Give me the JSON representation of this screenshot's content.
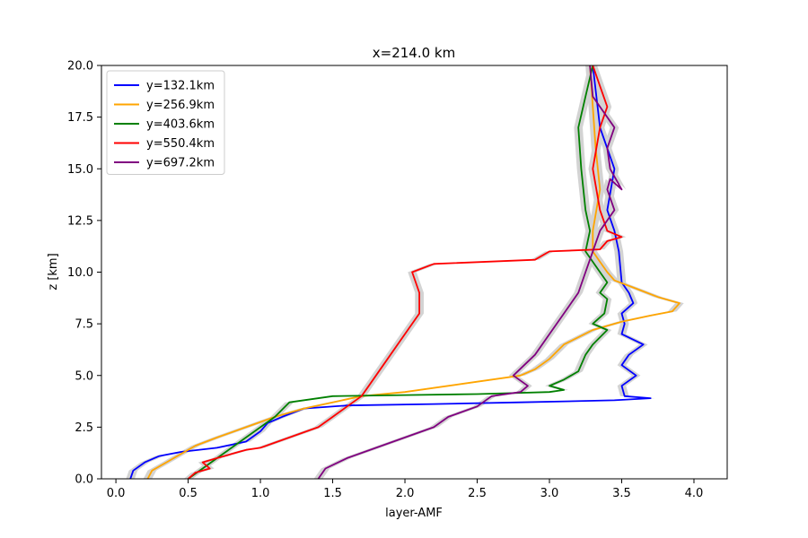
{
  "chart_data": {
    "type": "line",
    "title": "x=214.0 km",
    "xlabel": "layer-AMF",
    "ylabel": "z [km]",
    "xlim": [
      -0.1,
      4.23
    ],
    "ylim": [
      0,
      20
    ],
    "xticks": [
      0.0,
      0.5,
      1.0,
      1.5,
      2.0,
      2.5,
      3.0,
      3.5,
      4.0
    ],
    "xtick_labels": [
      "0.0",
      "0.5",
      "1.0",
      "1.5",
      "2.0",
      "2.5",
      "3.0",
      "3.5",
      "4.0"
    ],
    "yticks": [
      0.0,
      2.5,
      5.0,
      7.5,
      10.0,
      12.5,
      15.0,
      17.5,
      20.0
    ],
    "ytick_labels": [
      "0.0",
      "2.5",
      "5.0",
      "7.5",
      "10.0",
      "12.5",
      "15.0",
      "17.5",
      "20.0"
    ],
    "grid": false,
    "legend_position": "top-left",
    "band_color": "#d3d3d3",
    "series": [
      {
        "name": "y=132.1km",
        "color": "#0000ff",
        "x": [
          0.1,
          0.12,
          0.2,
          0.3,
          0.45,
          0.7,
          0.9,
          1.0,
          1.05,
          1.15,
          1.3,
          1.6,
          2.2,
          2.8,
          3.45,
          3.7,
          3.52,
          3.5,
          3.6,
          3.5,
          3.55,
          3.65,
          3.5,
          3.52,
          3.5,
          3.58,
          3.55,
          3.5,
          3.48,
          3.45,
          3.4,
          3.45,
          3.35,
          3.3
        ],
        "y": [
          0.0,
          0.4,
          0.8,
          1.1,
          1.3,
          1.5,
          1.8,
          2.3,
          2.7,
          3.0,
          3.4,
          3.55,
          3.62,
          3.7,
          3.8,
          3.9,
          4.0,
          4.5,
          5.0,
          5.5,
          6.0,
          6.5,
          7.0,
          7.5,
          8.0,
          8.5,
          9.0,
          9.5,
          11.0,
          12.0,
          13.0,
          15.0,
          17.0,
          20.0
        ]
      },
      {
        "name": "y=256.9km",
        "color": "#ffa500",
        "x": [
          0.22,
          0.25,
          0.35,
          0.45,
          0.55,
          0.7,
          0.9,
          1.1,
          1.3,
          1.5,
          1.7,
          2.0,
          2.3,
          2.5,
          2.8,
          2.9,
          3.0,
          3.1,
          3.3,
          3.5,
          3.7,
          3.85,
          3.9,
          3.75,
          3.6,
          3.45,
          3.4,
          3.35,
          3.3,
          3.3,
          3.35,
          3.32,
          3.3,
          3.28
        ],
        "y": [
          0.0,
          0.4,
          0.8,
          1.2,
          1.6,
          2.0,
          2.5,
          3.0,
          3.4,
          3.7,
          4.0,
          4.2,
          4.5,
          4.7,
          5.0,
          5.3,
          5.8,
          6.5,
          7.2,
          7.6,
          7.9,
          8.1,
          8.5,
          8.8,
          9.2,
          9.6,
          10.0,
          10.5,
          11.0,
          12.0,
          14.0,
          16.0,
          18.0,
          20.0
        ]
      },
      {
        "name": "y=403.6km",
        "color": "#008000",
        "x": [
          0.5,
          0.6,
          0.7,
          0.8,
          0.9,
          1.0,
          1.1,
          1.2,
          1.5,
          2.0,
          2.5,
          3.0,
          3.1,
          3.0,
          3.1,
          3.2,
          3.25,
          3.3,
          3.4,
          3.3,
          3.38,
          3.4,
          3.35,
          3.4,
          3.35,
          3.3,
          3.25,
          3.28,
          3.25,
          3.22,
          3.2,
          3.25,
          3.3
        ],
        "y": [
          0.0,
          0.5,
          1.0,
          1.5,
          2.0,
          2.5,
          3.0,
          3.7,
          4.0,
          4.05,
          4.1,
          4.2,
          4.3,
          4.5,
          4.8,
          5.2,
          6.0,
          6.5,
          7.2,
          7.5,
          8.0,
          8.7,
          9.0,
          9.5,
          10.0,
          10.5,
          11.0,
          12.0,
          13.0,
          15.0,
          17.0,
          18.5,
          20.0
        ]
      },
      {
        "name": "y=550.4km",
        "color": "#ff0000",
        "x": [
          0.5,
          0.55,
          0.65,
          0.6,
          0.7,
          0.8,
          0.9,
          1.0,
          1.2,
          1.4,
          1.5,
          1.6,
          1.7,
          1.75,
          1.8,
          1.9,
          2.0,
          2.1,
          2.1,
          2.05,
          2.2,
          2.9,
          3.0,
          3.35,
          3.4,
          3.5,
          3.4,
          3.35,
          3.3,
          3.35,
          3.4,
          3.35,
          3.3
        ],
        "y": [
          0.0,
          0.3,
          0.5,
          0.8,
          1.0,
          1.2,
          1.4,
          1.5,
          2.0,
          2.5,
          3.0,
          3.5,
          4.0,
          4.5,
          5.0,
          6.0,
          7.0,
          8.0,
          9.0,
          10.0,
          10.4,
          10.6,
          11.0,
          11.1,
          11.5,
          11.7,
          12.0,
          13.0,
          15.0,
          17.0,
          18.0,
          19.0,
          20.0
        ]
      },
      {
        "name": "y=697.2km",
        "color": "#800080",
        "x": [
          1.4,
          1.45,
          1.6,
          1.8,
          2.0,
          2.2,
          2.3,
          2.5,
          2.6,
          2.8,
          2.85,
          2.75,
          2.9,
          3.0,
          3.1,
          3.2,
          3.25,
          3.3,
          3.35,
          3.45,
          3.4,
          3.42,
          3.5,
          3.42,
          3.4,
          3.45,
          3.3,
          3.28
        ],
        "y": [
          0.0,
          0.5,
          1.0,
          1.5,
          2.0,
          2.5,
          3.0,
          3.5,
          4.0,
          4.2,
          4.5,
          5.0,
          6.0,
          7.0,
          8.0,
          9.0,
          10.0,
          11.0,
          12.0,
          13.0,
          14.0,
          14.5,
          14.0,
          15.0,
          16.0,
          17.0,
          18.5,
          20.0
        ]
      }
    ]
  }
}
